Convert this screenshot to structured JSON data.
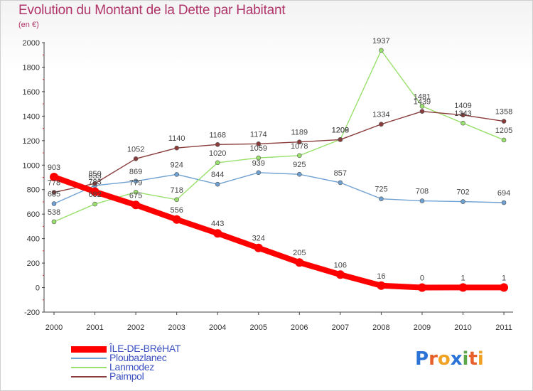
{
  "chart_data": {
    "type": "line",
    "title": "Evolution du Montant de la Dette par Habitant",
    "subtitle": "(en €)",
    "xlabel": "",
    "ylabel": "",
    "x": [
      "2000",
      "2001",
      "2002",
      "2003",
      "2004",
      "2005",
      "2006",
      "2007",
      "2008",
      "2009",
      "2010",
      "2011"
    ],
    "ylim": [
      -200,
      2000
    ],
    "yticks": [
      -200,
      0,
      200,
      400,
      600,
      800,
      1000,
      1200,
      1400,
      1600,
      1800,
      2000
    ],
    "grid": false,
    "legend_position": "bottom-left",
    "series": [
      {
        "name": "ÎLE-DE-BRéHAT",
        "color": "#ff0000",
        "values": [
          903,
          783,
          675,
          556,
          443,
          324,
          205,
          106,
          16,
          0,
          1,
          1
        ]
      },
      {
        "name": "Ploubazlanec",
        "color": "#6fa1d2",
        "values": [
          685,
          833,
          869,
          924,
          844,
          939,
          925,
          857,
          725,
          708,
          702,
          694
        ]
      },
      {
        "name": "Lanmodez",
        "color": "#99e06d",
        "values": [
          538,
          682,
          779,
          718,
          1020,
          1059,
          1078,
          1209,
          1937,
          1481,
          1343,
          1205
        ]
      },
      {
        "name": "Paimpol",
        "color": "#8a3c3c",
        "values": [
          778,
          850,
          1052,
          1140,
          1168,
          1174,
          1189,
          1208,
          1334,
          1439,
          1409,
          1358
        ]
      }
    ]
  },
  "legend": {
    "items": [
      "ÎLE-DE-BRéHAT",
      "Ploubazlanec",
      "Lanmodez",
      "Paimpol"
    ]
  },
  "logo": {
    "text": "Proxiti",
    "letters": [
      "P",
      "r",
      "o",
      "x",
      "i",
      "t",
      "i"
    ],
    "colors": [
      "#2b73d6",
      "#e8612c",
      "#f0a224",
      "#2b73d6",
      "#5aa84a",
      "#e8612c",
      "#f0a224"
    ]
  }
}
